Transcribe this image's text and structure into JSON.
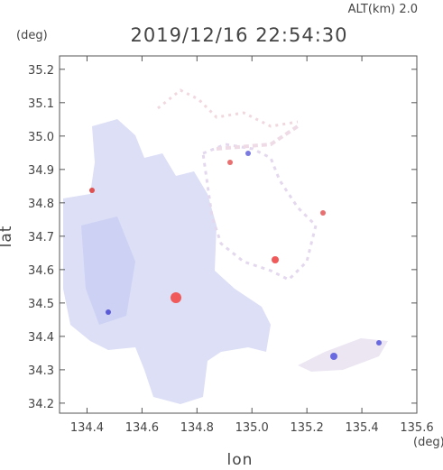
{
  "chart_data": {
    "type": "map",
    "title": "2019/12/16 22:54:30",
    "subtitle": "ALT(km)  2.0",
    "x_label": "lon",
    "y_label": "lat",
    "x_unit": "(deg)",
    "y_unit": "(deg)",
    "xlim": [
      134.3,
      135.6
    ],
    "xticks": [
      134.4,
      134.6,
      134.8,
      135.0,
      135.2,
      135.4,
      135.6
    ],
    "ylim": [
      34.17,
      35.24
    ],
    "yticks": [
      34.2,
      34.3,
      34.4,
      34.5,
      34.6,
      34.7,
      34.8,
      34.9,
      35.0,
      35.1,
      35.2
    ]
  }
}
